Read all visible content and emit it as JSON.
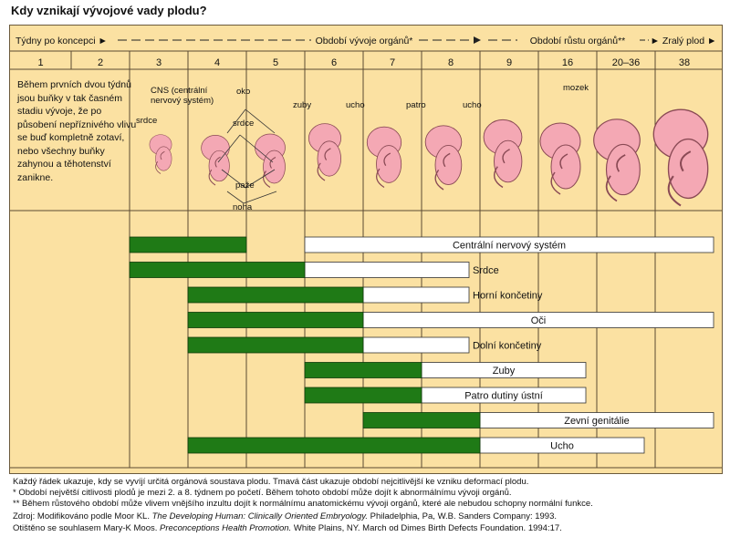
{
  "title": "Kdy vznikají vývojové vady plodu?",
  "header": {
    "weeks_label": "Týdny po koncepci ►",
    "organ_period": "Období vývoje orgánů*",
    "growth_period": "Období růstu orgánů**",
    "mature": "► Zralý plod ►"
  },
  "weeks": [
    "1",
    "2",
    "3",
    "4",
    "5",
    "6",
    "7",
    "8",
    "9",
    "16",
    "20–36",
    "38"
  ],
  "description": "Během prvních dvou týdnů jsou buňky v tak časném stadiu vývoje, že po působení nepříznivého vlivu se buď kompletně zotaví, nebo všechny buňky zahynou a těhotenství zanikne.",
  "fetus_labels": {
    "cns": "CNS (centrální nervový systém)",
    "srdce_3": "srdce",
    "oko": "oko",
    "srdce_4": "srdce",
    "paze": "paže",
    "noha": "noha",
    "zuby": "zuby",
    "ucho_6": "ucho",
    "patro": "patro",
    "ucho_8": "ucho",
    "mozek": "mozek"
  },
  "colors": {
    "panel_bg": "#fbe1a2",
    "sensitive": "#1f7a16",
    "less_sensitive": "#ffffff",
    "fetus": "#f4a8b4"
  },
  "chart_data": {
    "type": "bar",
    "x": [
      "1",
      "2",
      "3",
      "4",
      "5",
      "6",
      "7",
      "8",
      "9",
      "16",
      "20–36",
      "38"
    ],
    "series": [
      {
        "name": "Centrální nervový systém",
        "sensitive": [
          "3",
          "5"
        ],
        "less_sensitive": [
          "6",
          "38"
        ]
      },
      {
        "name": "Srdce",
        "sensitive": [
          "3",
          "6"
        ],
        "less_sensitive": [
          "6",
          "8"
        ]
      },
      {
        "name": "Horní končetiny",
        "sensitive": [
          "4",
          "7"
        ],
        "less_sensitive": [
          "7",
          "8"
        ]
      },
      {
        "name": "Oči",
        "sensitive": [
          "4",
          "7"
        ],
        "less_sensitive": [
          "7",
          "38"
        ]
      },
      {
        "name": "Dolní končetiny",
        "sensitive": [
          "4",
          "7"
        ],
        "less_sensitive": [
          "7",
          "8"
        ]
      },
      {
        "name": "Zuby",
        "sensitive": [
          "6",
          "8"
        ],
        "less_sensitive": [
          "8",
          "16"
        ]
      },
      {
        "name": "Patro dutiny ústní",
        "sensitive": [
          "6",
          "8"
        ],
        "less_sensitive": [
          "8",
          "16"
        ]
      },
      {
        "name": "Zevní genitálie",
        "sensitive": [
          "7",
          "9"
        ],
        "less_sensitive": [
          "9",
          "38"
        ]
      },
      {
        "name": "Ucho",
        "sensitive": [
          "4",
          "9"
        ],
        "less_sensitive": [
          "9",
          "20–36"
        ]
      }
    ]
  },
  "notes": {
    "line1": "Každý řádek ukazuje, kdy se vyvíjí určitá orgánová soustava plodu. Tmavá část ukazuje období nejcitlivější ke vzniku deformací plodu.",
    "line2": "* Období největší citlivosti plodů je mezi 2. a 8. týdnem po početí. Během tohoto období může dojít k abnormálnímu vývoji orgánů.",
    "line3": "** Během růstového období může vlivem vnějšího inzultu dojít k normálnímu anatomickému vývoji orgánů, které ale nebudou schopny normální funkce.",
    "source_prefix": "Zdroj: Modifikováno podle  Moor KL.",
    "source_title": "The Developing Human: Clinically Oriented Embryology.",
    "source_suffix": "Philadelphia, Pa, W.B. Sanders Company: 1993.",
    "permission_prefix": "Otištěno se souhlasem Mary-K Moos.",
    "permission_title": "Preconceptions Health Promotion.",
    "permission_suffix": "White Plains, NY. March od Dimes Birth Defects Foundation. 1994:17."
  }
}
